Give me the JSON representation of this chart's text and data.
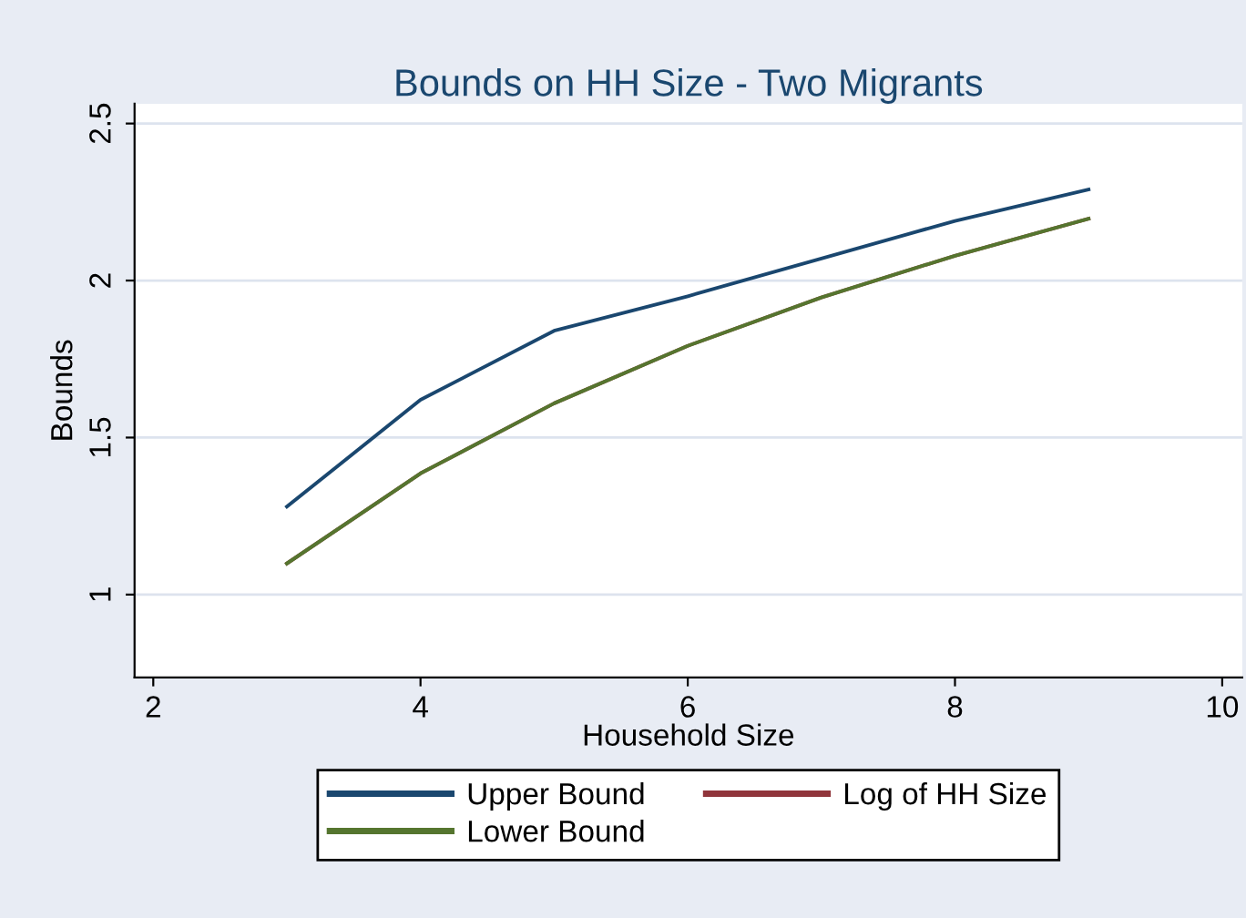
{
  "chart_data": {
    "type": "line",
    "title": "Bounds on HH Size - Two Migrants",
    "xlabel": "Household Size",
    "ylabel": "Bounds",
    "x": [
      3,
      4,
      5,
      6,
      7,
      8,
      9
    ],
    "series": [
      {
        "name": "Upper Bound",
        "color": "#1a476f",
        "values": [
          1.28,
          1.62,
          1.84,
          1.95,
          2.07,
          2.19,
          2.29
        ]
      },
      {
        "name": "Log of HH Size",
        "color": "#90353b",
        "values": [
          1.099,
          1.386,
          1.609,
          1.792,
          1.946,
          2.079,
          2.197
        ]
      },
      {
        "name": "Lower Bound",
        "color": "#55752f",
        "values": [
          1.099,
          1.386,
          1.609,
          1.792,
          1.946,
          2.079,
          2.197
        ]
      }
    ],
    "xlim": [
      1.86,
      10.15
    ],
    "ylim": [
      0.736,
      2.563
    ],
    "xticks": [
      2,
      4,
      6,
      8,
      10
    ],
    "yticks": [
      1,
      1.5,
      2,
      2.5
    ],
    "grid": "y",
    "legend": "bottom",
    "marker": "none",
    "line_style": "solid"
  }
}
